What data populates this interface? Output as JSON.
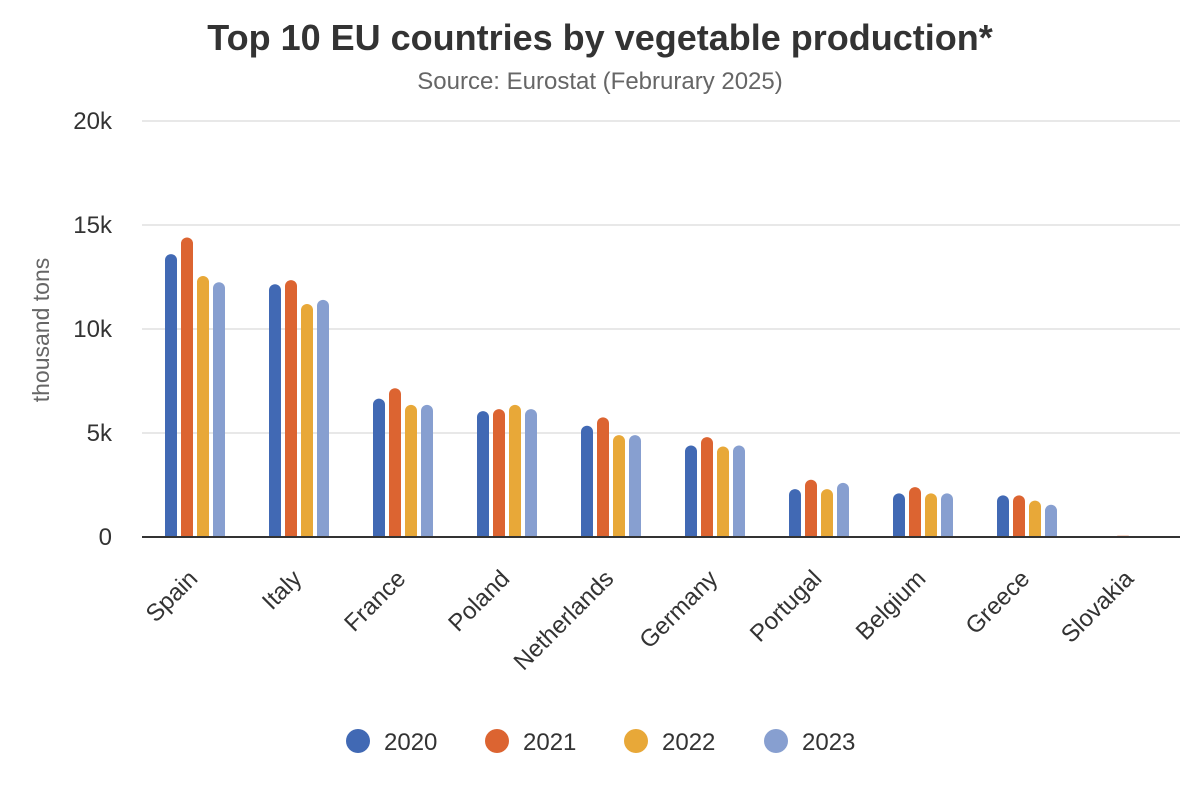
{
  "chart_data": {
    "type": "bar",
    "title": "Top 10 EU countries by vegetable production*",
    "subtitle": "Source: Eurostat (Februrary 2025)",
    "xlabel": "",
    "ylabel": "thousand tons",
    "ylim": [
      0,
      20000
    ],
    "yticks": [
      0,
      5000,
      10000,
      15000,
      20000
    ],
    "ytick_labels": [
      "0",
      "5k",
      "10k",
      "15k",
      "20k"
    ],
    "grid": true,
    "legend_position": "bottom",
    "categories": [
      "Spain",
      "Italy",
      "France",
      "Poland",
      "Netherlands",
      "Germany",
      "Portugal",
      "Belgium",
      "Greece",
      "Slovakia"
    ],
    "series": [
      {
        "name": "2020",
        "color": "#4169b4",
        "values": [
          13600,
          12150,
          6650,
          6050,
          5350,
          4400,
          2300,
          2100,
          2000,
          0
        ]
      },
      {
        "name": "2021",
        "color": "#dc6431",
        "values": [
          14400,
          12350,
          7150,
          6150,
          5750,
          4800,
          2750,
          2400,
          2000,
          60
        ]
      },
      {
        "name": "2022",
        "color": "#e8a838",
        "values": [
          12550,
          11200,
          6350,
          6350,
          4900,
          4350,
          2300,
          2100,
          1750,
          50
        ]
      },
      {
        "name": "2023",
        "color": "#879fd0",
        "values": [
          12250,
          11400,
          6350,
          6150,
          4900,
          4400,
          2600,
          2100,
          1550,
          50
        ]
      }
    ]
  }
}
